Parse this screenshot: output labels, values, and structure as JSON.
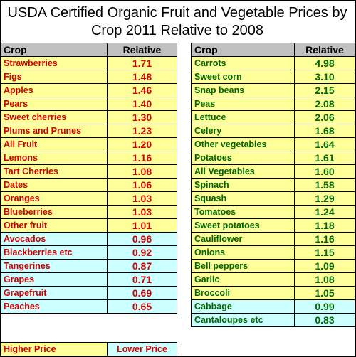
{
  "title": "USDA Certified Organic Fruit and Vegetable Prices by Crop 2011 Relative to 2008",
  "colors": {
    "higher_bg": "#ffff99",
    "lower_bg": "#ccffff",
    "fruit_text": "#cc0000",
    "vegetable_text": "#006600",
    "header_bg": "#c0c0c0"
  },
  "chart_data": [
    {
      "type": "table",
      "columns": [
        "Crop",
        "Relative"
      ],
      "rows": [
        [
          "Strawberries",
          "1.71"
        ],
        [
          "Figs",
          "1.48"
        ],
        [
          "Apples",
          "1.46"
        ],
        [
          "Pears",
          "1.40"
        ],
        [
          "Sweet cherries",
          "1.30"
        ],
        [
          "Plums and Prunes",
          "1.23"
        ],
        [
          "All Fruit",
          "1.20"
        ],
        [
          "Lemons",
          "1.16"
        ],
        [
          "Tart Cherries",
          "1.08"
        ],
        [
          "Dates",
          "1.06"
        ],
        [
          "Oranges",
          "1.03"
        ],
        [
          "Blueberries",
          "1.03"
        ],
        [
          "Other fruit",
          "1.01"
        ],
        [
          "Avocados",
          "0.96"
        ],
        [
          "Blackberries etc",
          "0.92"
        ],
        [
          "Tangerines",
          "0.87"
        ],
        [
          "Grapes",
          "0.71"
        ],
        [
          "Grapefruit",
          "0.69"
        ],
        [
          "Peaches",
          "0.65"
        ]
      ]
    },
    {
      "type": "table",
      "columns": [
        "Crop",
        "Relative"
      ],
      "rows": [
        [
          "Carrots",
          "4.98"
        ],
        [
          "Sweet corn",
          "3.10"
        ],
        [
          "Snap beans",
          "2.15"
        ],
        [
          "Peas",
          "2.08"
        ],
        [
          "Lettuce",
          "2.06"
        ],
        [
          "Celery",
          "1.68"
        ],
        [
          "Other vegetables",
          "1.64"
        ],
        [
          "Potatoes",
          "1.61"
        ],
        [
          "All Vegetables",
          "1.60"
        ],
        [
          "Spinach",
          "1.58"
        ],
        [
          "Squash",
          "1.29"
        ],
        [
          "Tomatoes",
          "1.24"
        ],
        [
          "Sweet potatoes",
          "1.18"
        ],
        [
          "Cauliflower",
          "1.16"
        ],
        [
          "Onions",
          "1.15"
        ],
        [
          "Bell peppers",
          "1.09"
        ],
        [
          "Garlic",
          "1.08"
        ],
        [
          "Broccoli",
          "1.05"
        ],
        [
          "Cabbage",
          "0.99"
        ],
        [
          "Cantaloupes etc",
          "0.83"
        ]
      ]
    }
  ],
  "legend": {
    "higher": "Higher Price",
    "lower": "Lower Price"
  }
}
